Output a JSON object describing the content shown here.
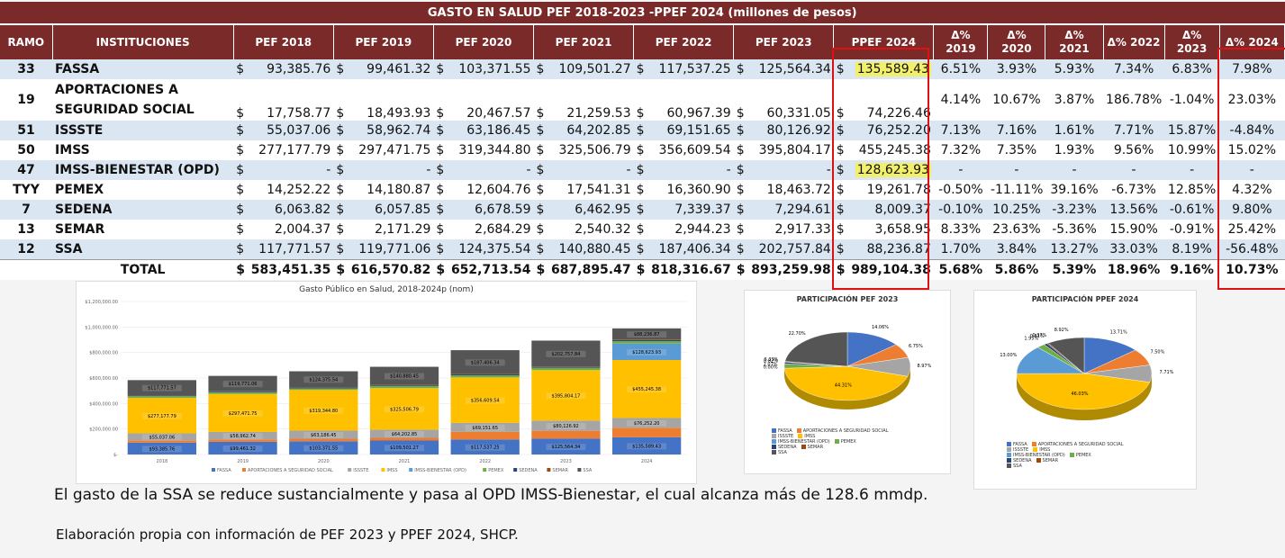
{
  "title": "GASTO EN SALUD PEF 2018-2023 -PPEF 2024 (millones de pesos)",
  "headers": {
    "ramo": "RAMO",
    "inst": "INSTITUCIONES",
    "years": [
      "PEF 2018",
      "PEF 2019",
      "PEF 2020",
      "PEF 2021",
      "PEF 2022",
      "PEF 2023",
      "PPEF 2024"
    ],
    "deltas": [
      "Δ% 2019",
      "Δ% 2020",
      "Δ% 2021",
      "Δ% 2022",
      "Δ% 2023",
      "Δ% 2024"
    ]
  },
  "currency": "$",
  "rows": [
    {
      "ramo": "33",
      "inst": "FASSA",
      "values": [
        "93,385.76",
        "99,461.32",
        "103,371.55",
        "109,501.27",
        "117,537.25",
        "125,564.34",
        "135,589.43"
      ],
      "deltas": [
        "6.51%",
        "3.93%",
        "5.93%",
        "7.34%",
        "6.83%",
        "7.98%"
      ],
      "highlight": true
    },
    {
      "ramo": "19",
      "inst": "APORTACIONES A",
      "inst2": "SEGURIDAD SOCIAL",
      "values": [
        "17,758.77",
        "18,493.93",
        "20,467.57",
        "21,259.53",
        "60,967.39",
        "60,331.05",
        "74,226.46"
      ],
      "deltas": [
        "4.14%",
        "10.67%",
        "3.87%",
        "186.78%",
        "-1.04%",
        "23.03%"
      ]
    },
    {
      "ramo": "51",
      "inst": "ISSSTE",
      "values": [
        "55,037.06",
        "58,962.74",
        "63,186.45",
        "64,202.85",
        "69,151.65",
        "80,126.92",
        "76,252.20"
      ],
      "deltas": [
        "7.13%",
        "7.16%",
        "1.61%",
        "7.71%",
        "15.87%",
        "-4.84%"
      ]
    },
    {
      "ramo": "50",
      "inst": "IMSS",
      "values": [
        "277,177.79",
        "297,471.75",
        "319,344.80",
        "325,506.79",
        "356,609.54",
        "395,804.17",
        "455,245.38"
      ],
      "deltas": [
        "7.32%",
        "7.35%",
        "1.93%",
        "9.56%",
        "10.99%",
        "15.02%"
      ]
    },
    {
      "ramo": "47",
      "inst": "IMSS-BIENESTAR (OPD)",
      "values": [
        "-",
        "-",
        "-",
        "-",
        "-",
        "-",
        "128,623.93"
      ],
      "deltas": [
        "-",
        "-",
        "-",
        "-",
        "-",
        "-"
      ],
      "highlight": true
    },
    {
      "ramo": "TYY",
      "inst": "PEMEX",
      "values": [
        "14,252.22",
        "14,180.87",
        "12,604.76",
        "17,541.31",
        "16,360.90",
        "18,463.72",
        "19,261.78"
      ],
      "deltas": [
        "-0.50%",
        "-11.11%",
        "39.16%",
        "-6.73%",
        "12.85%",
        "4.32%"
      ]
    },
    {
      "ramo": "7",
      "inst": "SEDENA",
      "values": [
        "6,063.82",
        "6,057.85",
        "6,678.59",
        "6,462.95",
        "7,339.37",
        "7,294.61",
        "8,009.37"
      ],
      "deltas": [
        "-0.10%",
        "10.25%",
        "-3.23%",
        "13.56%",
        "-0.61%",
        "9.80%"
      ]
    },
    {
      "ramo": "13",
      "inst": "SEMAR",
      "values": [
        "2,004.37",
        "2,171.29",
        "2,684.29",
        "2,540.32",
        "2,944.23",
        "2,917.33",
        "3,658.95"
      ],
      "deltas": [
        "8.33%",
        "23.63%",
        "-5.36%",
        "15.90%",
        "-0.91%",
        "25.42%"
      ]
    },
    {
      "ramo": "12",
      "inst": "SSA",
      "values": [
        "117,771.57",
        "119,771.06",
        "124,375.54",
        "140,880.45",
        "187,406.34",
        "202,757.84",
        "88,236.87"
      ],
      "deltas": [
        "1.70%",
        "3.84%",
        "13.27%",
        "33.03%",
        "8.19%",
        "-56.48%"
      ]
    }
  ],
  "total": {
    "label": "TOTAL",
    "values": [
      "583,451.35",
      "616,570.82",
      "652,713.54",
      "687,895.47",
      "818,316.67",
      "893,259.98",
      "989,104.38"
    ],
    "deltas": [
      "5.68%",
      "5.86%",
      "5.39%",
      "18.96%",
      "9.16%",
      "10.73%"
    ]
  },
  "chart_data": [
    {
      "type": "bar",
      "stacked": true,
      "title": "Gasto Público en Salud, 2018-2024p (nom)",
      "categories": [
        "2018",
        "2019",
        "2020",
        "2021",
        "2022",
        "2023",
        "2024"
      ],
      "ylim": [
        0,
        1200000
      ],
      "yticks": [
        "$1,200,000.00",
        "$1,000,000.00",
        "$800,000.00",
        "$600,000.00",
        "$400,000.00",
        "$200,000.00",
        "$-"
      ],
      "series": [
        {
          "name": "FASSA",
          "color": "#4472c4",
          "values": [
            93385.76,
            99461.32,
            103371.55,
            109501.27,
            117537.25,
            125564.34,
            135589.43
          ],
          "labels": [
            "$93,385.76",
            "$99,461.32",
            "$103,371.55",
            "$109,501.27",
            "$117,537.25",
            "$125,564.34",
            "$135,589.43"
          ]
        },
        {
          "name": "APORTACIONES A SEGURIDAD SOCIAL",
          "color": "#ed7d31",
          "values": [
            17758.77,
            18493.93,
            20467.57,
            21259.53,
            60967.39,
            60331.05,
            74226.46
          ],
          "labels": [
            "",
            "",
            "",
            "",
            "",
            "",
            ""
          ]
        },
        {
          "name": "ISSSTE",
          "color": "#a5a5a5",
          "values": [
            55037.06,
            58962.74,
            63186.45,
            64202.85,
            69151.65,
            80126.92,
            76252.2
          ],
          "labels": [
            "$55,037.06",
            "$58,962.74",
            "$63,186.45",
            "$64,202.85",
            "$69,151.65",
            "$80,126.92",
            "$76,252.20"
          ]
        },
        {
          "name": "IMSS",
          "color": "#ffc000",
          "values": [
            277177.79,
            297471.75,
            319344.8,
            325506.79,
            356609.54,
            395804.17,
            455245.38
          ],
          "labels": [
            "$277,177.79",
            "$297,471.75",
            "$319,344.80",
            "$325,506.79",
            "$356,609.54",
            "$395,804.17",
            "$455,245.38"
          ]
        },
        {
          "name": "IMSS-BIENESTAR (OPD)",
          "color": "#5b9bd5",
          "values": [
            0,
            0,
            0,
            0,
            0,
            0,
            128623.93
          ],
          "labels": [
            "",
            "",
            "",
            "",
            "",
            "",
            "$128,623.93"
          ]
        },
        {
          "name": "PEMEX",
          "color": "#70ad47",
          "values": [
            14252.22,
            14180.87,
            12604.76,
            17541.31,
            16360.9,
            18463.72,
            19261.78
          ],
          "labels": [
            "",
            "",
            "",
            "",
            "",
            "",
            ""
          ]
        },
        {
          "name": "SEDENA",
          "color": "#264478",
          "values": [
            6063.82,
            6057.85,
            6678.59,
            6462.95,
            7339.37,
            7294.61,
            8009.37
          ],
          "labels": [
            "",
            "",
            "",
            "",
            "",
            "",
            ""
          ]
        },
        {
          "name": "SEMAR",
          "color": "#9e480e",
          "values": [
            2004.37,
            2171.29,
            2684.29,
            2540.32,
            2944.23,
            2917.33,
            3658.95
          ],
          "labels": [
            "",
            "",
            "",
            "",
            "",
            "",
            ""
          ]
        },
        {
          "name": "SSA",
          "color": "#555555",
          "values": [
            117771.57,
            119771.06,
            124375.54,
            140880.45,
            187406.34,
            202757.84,
            88236.87
          ],
          "labels": [
            "$117,771.57",
            "$119,771.06",
            "$124,375.54",
            "$140,880.45",
            "$187,406.34",
            "$202,757.84",
            "$88,236.87"
          ]
        }
      ]
    },
    {
      "type": "pie",
      "title": "PARTICIPACIÓN PEF 2023",
      "categories": [
        "FASSA",
        "APORTACIONES A SEGURIDAD SOCIAL",
        "ISSSTE",
        "IMSS",
        "IMSS-BIENESTAR (OPD)",
        "PEMEX",
        "SEDENA",
        "SEMAR",
        "SSA"
      ],
      "values": [
        14.06,
        6.75,
        8.97,
        44.31,
        0.0,
        2.07,
        0.82,
        0.33,
        22.7
      ],
      "labels": [
        "14.06%",
        "6.75%",
        "8.97%",
        "44.31%",
        "0.00%",
        "2.07%",
        "0.82%",
        "0.33%",
        "22.70%"
      ]
    },
    {
      "type": "pie",
      "title": "PARTICIPACIÓN PPEF 2024",
      "categories": [
        "FASSA",
        "APORTACIONES A SEGURIDAD SOCIAL",
        "ISSSTE",
        "IMSS",
        "IMSS-BIENESTAR (OPD)",
        "PEMEX",
        "SEDENA",
        "SEMAR",
        "SSA"
      ],
      "values": [
        13.71,
        7.5,
        7.71,
        46.03,
        13.0,
        1.95,
        0.81,
        0.37,
        8.92
      ],
      "labels": [
        "13.71%",
        "7.50%",
        "7.71%",
        "46.03%",
        "13.00%",
        "1.95%",
        "0.81%",
        "0.37%",
        "8.92%"
      ]
    }
  ],
  "pie_colors": [
    "#4472c4",
    "#ed7d31",
    "#a5a5a5",
    "#ffc000",
    "#5b9bd5",
    "#70ad47",
    "#264478",
    "#9e480e",
    "#555555"
  ],
  "caption1": "El gasto de la SSA se reduce sustancialmente y pasa al OPD IMSS-Bienestar, el cual alcanza más de 128.6 mmdp.",
  "caption2": "Elaboración propia con información de PEF 2023 y PPEF 2024, SHCP."
}
